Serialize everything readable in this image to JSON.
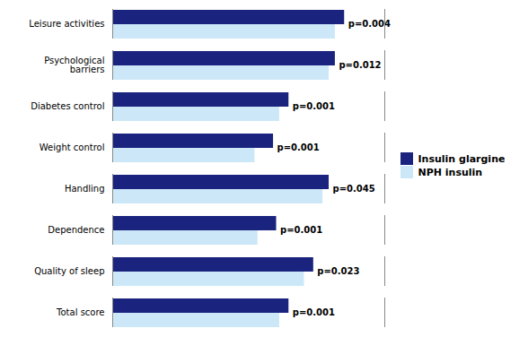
{
  "chart_data": {
    "type": "bar",
    "orientation": "horizontal",
    "categories": [
      "Total score",
      "Quality of sleep",
      "Dependence",
      "Handling",
      "Weight control",
      "Diabetes control",
      "Psychological\nbarriers",
      "Leisure activities"
    ],
    "series": [
      {
        "name": "Insulin glargine",
        "color": "#1a237e",
        "values": [
          57,
          65,
          53,
          70,
          52,
          57,
          72,
          75
        ]
      },
      {
        "name": "NPH insulin",
        "color": "#cce8f8",
        "values": [
          54,
          62,
          47,
          68,
          46,
          54,
          70,
          72
        ]
      }
    ],
    "annotations": [
      "p=0.001",
      "p=0.023",
      "p=0.001",
      "p=0.045",
      "p=0.001",
      "p=0.001",
      "p=0.012",
      "p=0.004"
    ],
    "xlim": [
      0,
      88
    ],
    "tick_labels": "y",
    "legend": "right"
  }
}
